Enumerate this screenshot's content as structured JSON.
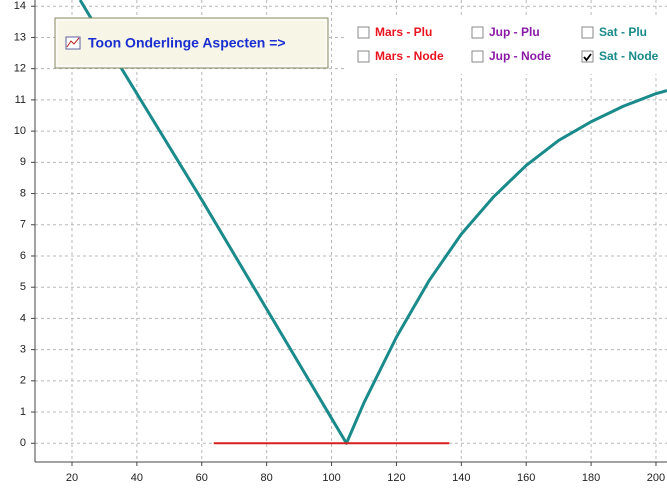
{
  "button": {
    "label": "Toon Onderlinge Aspecten =>"
  },
  "checkboxes": [
    {
      "label": "Mars - Plu",
      "color": "#e8141e",
      "checked": false
    },
    {
      "label": "Jup - Plu",
      "color": "#8a1aa6",
      "checked": false
    },
    {
      "label": "Sat - Plu",
      "color": "#1a8a8a",
      "checked": false
    },
    {
      "label": "Mars - Node",
      "color": "#e8141e",
      "checked": false
    },
    {
      "label": "Jup - Node",
      "color": "#8a1aa6",
      "checked": false
    },
    {
      "label": "Sat - Node",
      "color": "#1a8a8a",
      "checked": true
    }
  ],
  "chart_data": {
    "type": "line",
    "xlim": [
      8.6,
      203.4
    ],
    "ylim": [
      -0.6,
      14.2
    ],
    "xticks": [
      20,
      40,
      60,
      80,
      100,
      120,
      140,
      160,
      180,
      200
    ],
    "yticks": [
      0,
      1,
      2,
      3,
      4,
      5,
      6,
      7,
      8,
      9,
      10,
      11,
      12,
      13,
      14
    ],
    "grid": true,
    "series": [
      {
        "color": "#1a8a8a",
        "x": [
          22.5,
          30,
          40,
          60,
          80,
          100,
          104.6,
          110,
          120,
          130,
          140,
          150,
          160,
          170,
          180,
          190,
          200,
          203.4
        ],
        "values": [
          14.2,
          12.9,
          11.2,
          7.8,
          4.3,
          0.8,
          0,
          1.3,
          3.4,
          5.2,
          6.7,
          7.9,
          8.9,
          9.7,
          10.3,
          10.8,
          11.2,
          11.3
        ]
      },
      {
        "color": "#d81e1e",
        "x": [
          63.7,
          136.3
        ],
        "values": [
          0,
          0
        ]
      }
    ]
  }
}
